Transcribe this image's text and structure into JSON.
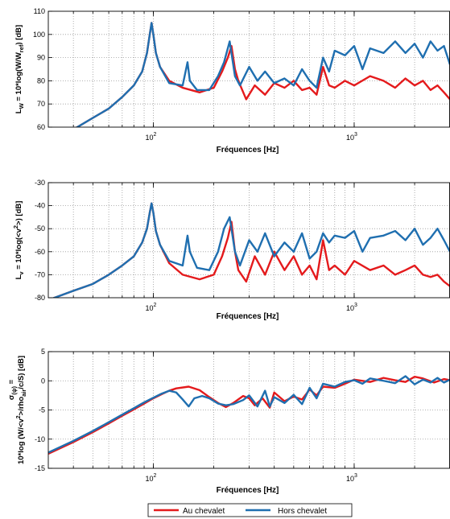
{
  "colors": {
    "red": "#e41a1c",
    "blue": "#1f6fb0",
    "grid": "#9a9a9a"
  },
  "legend": {
    "placement": "bottom-center",
    "items": [
      {
        "label": "Au chevalet",
        "color": "#e41a1c"
      },
      {
        "label": "Hors chevalet",
        "color": "#1f6fb0"
      }
    ]
  },
  "chart_data": [
    {
      "type": "line",
      "xlabel": "Fréquences [Hz]",
      "ylabel": "L_W = 10*log(W/W_ref) [dB]",
      "ylabel_parts": [
        "L",
        "W",
        " = 10*log(W/W",
        "ref",
        ") [dB]"
      ],
      "xscale": "log",
      "xlim": [
        30,
        3000
      ],
      "ylim": [
        60,
        110
      ],
      "xticks": [
        {
          "value": 100,
          "label": "10",
          "exp": "2"
        },
        {
          "value": 1000,
          "label": "10",
          "exp": "3"
        }
      ],
      "yticks": [
        60,
        70,
        80,
        90,
        100,
        110
      ],
      "grid": true,
      "series": [
        {
          "name": "Au chevalet",
          "color": "#e41a1c",
          "x": [
            30,
            40,
            50,
            60,
            70,
            80,
            88,
            93,
            96,
            98,
            100,
            103,
            108,
            120,
            140,
            170,
            200,
            220,
            235,
            245,
            255,
            265,
            290,
            320,
            360,
            400,
            450,
            500,
            550,
            600,
            650,
            700,
            750,
            800,
            900,
            1000,
            1200,
            1400,
            1600,
            1800,
            2000,
            2200,
            2400,
            2600,
            2800,
            3000
          ],
          "y": [
            54,
            59,
            64,
            68,
            73,
            78,
            84,
            92,
            100,
            105,
            100,
            92,
            86,
            80,
            77,
            75,
            77,
            84,
            90,
            95,
            85,
            80,
            72,
            78,
            74,
            79,
            77,
            80,
            76,
            77,
            74,
            86,
            78,
            77,
            80,
            78,
            82,
            80,
            77,
            81,
            78,
            80,
            76,
            78,
            75,
            72
          ]
        },
        {
          "name": "Hors chevalet",
          "color": "#1f6fb0",
          "x": [
            30,
            40,
            50,
            60,
            70,
            80,
            88,
            93,
            96,
            98,
            100,
            103,
            108,
            120,
            140,
            148,
            152,
            165,
            190,
            210,
            225,
            240,
            255,
            270,
            300,
            330,
            360,
            400,
            450,
            500,
            550,
            600,
            650,
            700,
            750,
            800,
            900,
            1000,
            1100,
            1200,
            1400,
            1600,
            1800,
            2000,
            2200,
            2400,
            2600,
            2800,
            3000
          ],
          "y": [
            54,
            59,
            64,
            68,
            73,
            78,
            84,
            92,
            100,
            105,
            100,
            92,
            86,
            79,
            78,
            88,
            80,
            76,
            76,
            82,
            88,
            97,
            82,
            78,
            86,
            80,
            84,
            79,
            81,
            78,
            85,
            80,
            77,
            90,
            84,
            93,
            91,
            95,
            85,
            94,
            92,
            97,
            92,
            96,
            90,
            97,
            93,
            95,
            87
          ]
        }
      ]
    },
    {
      "type": "line",
      "xlabel": "Fréquences [Hz]",
      "ylabel": "L_v = 10*log(<v^2>) [dB]",
      "ylabel_parts": [
        "L",
        "v",
        " = 10*log(<v",
        "2",
        ">) [dB]"
      ],
      "xscale": "log",
      "xlim": [
        30,
        3000
      ],
      "ylim": [
        -80,
        -30
      ],
      "xticks": [
        {
          "value": 100,
          "label": "10",
          "exp": "2"
        },
        {
          "value": 1000,
          "label": "10",
          "exp": "3"
        }
      ],
      "yticks": [
        -80,
        -70,
        -60,
        -50,
        -40,
        -30
      ],
      "grid": true,
      "series": [
        {
          "name": "Au chevalet",
          "color": "#e41a1c",
          "x": [
            30,
            40,
            50,
            60,
            70,
            80,
            88,
            93,
            96,
            98,
            100,
            103,
            108,
            120,
            140,
            170,
            200,
            220,
            235,
            245,
            255,
            265,
            290,
            320,
            360,
            400,
            450,
            500,
            550,
            600,
            650,
            700,
            750,
            800,
            900,
            1000,
            1200,
            1400,
            1600,
            1800,
            2000,
            2200,
            2400,
            2600,
            2800,
            3000
          ],
          "y": [
            -81,
            -77,
            -74,
            -70,
            -66,
            -62,
            -56,
            -50,
            -43,
            -39,
            -43,
            -51,
            -57,
            -65,
            -70,
            -72,
            -70,
            -62,
            -54,
            -47,
            -60,
            -68,
            -73,
            -62,
            -70,
            -60,
            -68,
            -62,
            -70,
            -66,
            -72,
            -55,
            -68,
            -66,
            -70,
            -64,
            -68,
            -66,
            -70,
            -68,
            -66,
            -70,
            -71,
            -70,
            -73,
            -75
          ]
        },
        {
          "name": "Hors chevalet",
          "color": "#1f6fb0",
          "x": [
            30,
            40,
            50,
            60,
            70,
            80,
            88,
            93,
            96,
            98,
            100,
            103,
            108,
            120,
            140,
            148,
            152,
            165,
            190,
            210,
            225,
            240,
            255,
            270,
            300,
            330,
            360,
            400,
            450,
            500,
            550,
            600,
            650,
            700,
            750,
            800,
            900,
            1000,
            1100,
            1200,
            1400,
            1600,
            1800,
            2000,
            2200,
            2400,
            2600,
            2800,
            3000
          ],
          "y": [
            -81,
            -77,
            -74,
            -70,
            -66,
            -62,
            -56,
            -50,
            -43,
            -39,
            -43,
            -51,
            -57,
            -64,
            -66,
            -53,
            -60,
            -67,
            -68,
            -60,
            -50,
            -45,
            -60,
            -66,
            -55,
            -60,
            -52,
            -62,
            -56,
            -60,
            -52,
            -63,
            -60,
            -52,
            -56,
            -53,
            -54,
            -51,
            -60,
            -54,
            -53,
            -51,
            -55,
            -50,
            -57,
            -54,
            -50,
            -55,
            -60
          ]
        }
      ]
    },
    {
      "type": "line",
      "xlabel": "Fréquences [Hz]",
      "ylabel": "σ_(ψ) = 10*log (W/<v²>/rho_air/c/S) [dB]",
      "ylabel_parts": [
        "σ",
        "(ψ)",
        " =",
        "10*log (W/<v",
        "2",
        ">/rho",
        "air",
        "/c/S) [dB]"
      ],
      "xscale": "log",
      "xlim": [
        30,
        3000
      ],
      "ylim": [
        -15,
        5
      ],
      "xticks": [
        {
          "value": 100,
          "label": "10",
          "exp": "2"
        },
        {
          "value": 1000,
          "label": "10",
          "exp": "3"
        }
      ],
      "yticks": [
        -15,
        -10,
        -5,
        0,
        5
      ],
      "grid": true,
      "series": [
        {
          "name": "Au chevalet",
          "color": "#e41a1c",
          "x": [
            30,
            40,
            50,
            60,
            70,
            80,
            90,
            100,
            110,
            120,
            130,
            150,
            170,
            190,
            210,
            230,
            250,
            280,
            300,
            320,
            350,
            380,
            400,
            450,
            500,
            550,
            600,
            650,
            700,
            800,
            900,
            1000,
            1200,
            1400,
            1600,
            1800,
            2000,
            2200,
            2500,
            2800,
            3000
          ],
          "y": [
            -12.5,
            -10.5,
            -8.8,
            -7.3,
            -6.0,
            -4.9,
            -3.9,
            -3.0,
            -2.3,
            -1.7,
            -1.3,
            -1.0,
            -1.6,
            -2.8,
            -3.8,
            -4.5,
            -3.8,
            -2.6,
            -3.0,
            -4.2,
            -3.0,
            -4.6,
            -2.0,
            -3.5,
            -2.7,
            -3.2,
            -1.5,
            -2.5,
            -1.0,
            -1.2,
            -0.5,
            0.2,
            -0.2,
            0.5,
            0.1,
            -0.2,
            0.7,
            0.4,
            -0.3,
            0.3,
            0.1
          ]
        },
        {
          "name": "Hors chevalet",
          "color": "#1f6fb0",
          "x": [
            30,
            40,
            50,
            60,
            70,
            80,
            90,
            100,
            110,
            120,
            130,
            140,
            150,
            160,
            175,
            190,
            210,
            230,
            250,
            280,
            300,
            330,
            360,
            380,
            400,
            450,
            500,
            550,
            600,
            650,
            700,
            800,
            900,
            1000,
            1100,
            1200,
            1400,
            1600,
            1800,
            2000,
            2200,
            2400,
            2600,
            2800,
            3000
          ],
          "y": [
            -12.3,
            -10.3,
            -8.6,
            -7.1,
            -5.8,
            -4.7,
            -3.7,
            -2.9,
            -2.2,
            -1.7,
            -2.0,
            -3.2,
            -4.4,
            -3.0,
            -2.6,
            -3.0,
            -3.9,
            -4.2,
            -4.0,
            -3.3,
            -2.5,
            -4.4,
            -1.7,
            -4.4,
            -2.8,
            -3.8,
            -2.4,
            -4.0,
            -1.2,
            -3.0,
            -0.5,
            -1.0,
            -0.2,
            0.1,
            -0.5,
            0.4,
            0.0,
            -0.4,
            0.8,
            -0.6,
            0.2,
            -0.3,
            0.5,
            -0.3,
            0.2
          ]
        }
      ]
    }
  ]
}
